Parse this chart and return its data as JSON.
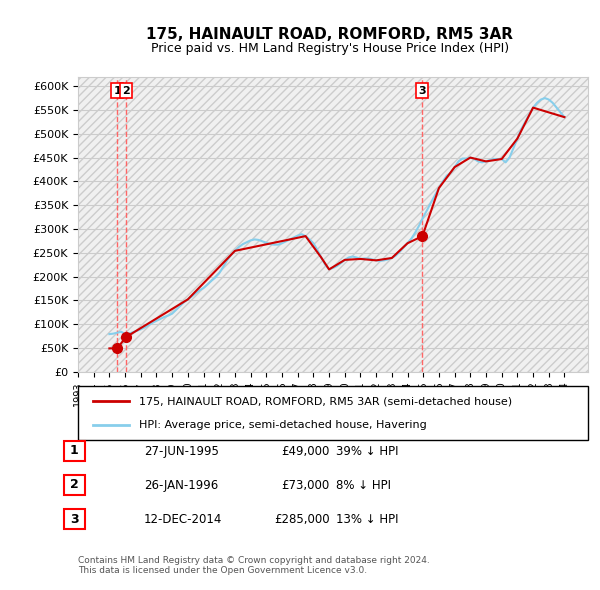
{
  "title": "175, HAINAULT ROAD, ROMFORD, RM5 3AR",
  "subtitle": "Price paid vs. HM Land Registry's House Price Index (HPI)",
  "ylabel_ticks": [
    "£0",
    "£50K",
    "£100K",
    "£150K",
    "£200K",
    "£250K",
    "£300K",
    "£350K",
    "£400K",
    "£450K",
    "£500K",
    "£550K",
    "£600K"
  ],
  "ylim": [
    0,
    620000
  ],
  "ytick_vals": [
    0,
    50000,
    100000,
    150000,
    200000,
    250000,
    300000,
    350000,
    400000,
    450000,
    500000,
    550000,
    600000
  ],
  "xlim_start": 1993.0,
  "xlim_end": 2025.5,
  "hpi_color": "#87CEEB",
  "price_color": "#CC0000",
  "vline_color": "#FF6666",
  "background_hatch_color": "#E8E8E8",
  "grid_color": "#CCCCCC",
  "sales": [
    {
      "year": 1995.49,
      "price": 49000,
      "label": "1"
    },
    {
      "year": 1996.07,
      "price": 73000,
      "label": "2"
    },
    {
      "year": 2014.95,
      "price": 285000,
      "label": "3"
    }
  ],
  "table_rows": [
    {
      "num": "1",
      "date": "27-JUN-1995",
      "price": "£49,000",
      "hpi": "39% ↓ HPI"
    },
    {
      "num": "2",
      "date": "26-JAN-1996",
      "price": "£73,000",
      "hpi": "8% ↓ HPI"
    },
    {
      "num": "3",
      "date": "12-DEC-2014",
      "price": "£285,000",
      "hpi": "13% ↓ HPI"
    }
  ],
  "legend_line1": "175, HAINAULT ROAD, ROMFORD, RM5 3AR (semi-detached house)",
  "legend_line2": "HPI: Average price, semi-detached house, Havering",
  "footer": "Contains HM Land Registry data © Crown copyright and database right 2024.\nThis data is licensed under the Open Government Licence v3.0.",
  "hpi_data_x": [
    1995.0,
    1995.25,
    1995.5,
    1995.75,
    1996.0,
    1996.25,
    1996.5,
    1996.75,
    1997.0,
    1997.25,
    1997.5,
    1997.75,
    1998.0,
    1998.25,
    1998.5,
    1998.75,
    1999.0,
    1999.25,
    1999.5,
    1999.75,
    2000.0,
    2000.25,
    2000.5,
    2000.75,
    2001.0,
    2001.25,
    2001.5,
    2001.75,
    2002.0,
    2002.25,
    2002.5,
    2002.75,
    2003.0,
    2003.25,
    2003.5,
    2003.75,
    2004.0,
    2004.25,
    2004.5,
    2004.75,
    2005.0,
    2005.25,
    2005.5,
    2005.75,
    2006.0,
    2006.25,
    2006.5,
    2006.75,
    2007.0,
    2007.25,
    2007.5,
    2007.75,
    2008.0,
    2008.25,
    2008.5,
    2008.75,
    2009.0,
    2009.25,
    2009.5,
    2009.75,
    2010.0,
    2010.25,
    2010.5,
    2010.75,
    2011.0,
    2011.25,
    2011.5,
    2011.75,
    2012.0,
    2012.25,
    2012.5,
    2012.75,
    2013.0,
    2013.25,
    2013.5,
    2013.75,
    2014.0,
    2014.25,
    2014.5,
    2014.75,
    2015.0,
    2015.25,
    2015.5,
    2015.75,
    2016.0,
    2016.25,
    2016.5,
    2016.75,
    2017.0,
    2017.25,
    2017.5,
    2017.75,
    2018.0,
    2018.25,
    2018.5,
    2018.75,
    2019.0,
    2019.25,
    2019.5,
    2019.75,
    2020.0,
    2020.25,
    2020.5,
    2020.75,
    2021.0,
    2021.25,
    2021.5,
    2021.75,
    2022.0,
    2022.25,
    2022.5,
    2022.75,
    2023.0,
    2023.25,
    2023.5,
    2023.75,
    2024.0
  ],
  "hpi_data_y": [
    79000,
    80000,
    82000,
    84000,
    79000,
    80000,
    83000,
    86000,
    89000,
    93000,
    98000,
    103000,
    107000,
    111000,
    115000,
    118000,
    122000,
    130000,
    138000,
    146000,
    152000,
    158000,
    165000,
    171000,
    176000,
    183000,
    191000,
    198000,
    207000,
    220000,
    234000,
    245000,
    254000,
    262000,
    268000,
    272000,
    276000,
    278000,
    277000,
    274000,
    271000,
    268000,
    267000,
    267000,
    270000,
    274000,
    278000,
    282000,
    286000,
    289000,
    285000,
    278000,
    270000,
    256000,
    240000,
    225000,
    215000,
    218000,
    222000,
    228000,
    235000,
    240000,
    242000,
    240000,
    237000,
    238000,
    238000,
    236000,
    234000,
    233000,
    234000,
    236000,
    239000,
    244000,
    252000,
    261000,
    270000,
    280000,
    293000,
    308000,
    325000,
    340000,
    356000,
    371000,
    386000,
    400000,
    412000,
    418000,
    430000,
    442000,
    448000,
    448000,
    450000,
    447000,
    442000,
    440000,
    442000,
    445000,
    447000,
    447000,
    447000,
    440000,
    450000,
    470000,
    490000,
    510000,
    525000,
    540000,
    555000,
    565000,
    572000,
    575000,
    572000,
    565000,
    555000,
    545000,
    535000
  ],
  "price_line_x": [
    1995.0,
    1995.49,
    1996.07,
    2000.0,
    2003.0,
    2006.5,
    2007.5,
    2008.5,
    2009.0,
    2010.0,
    2011.0,
    2012.0,
    2013.0,
    2014.0,
    2014.95,
    2016.0,
    2017.0,
    2018.0,
    2019.0,
    2020.0,
    2021.0,
    2022.0,
    2023.0,
    2024.0
  ],
  "price_line_y": [
    49000,
    49000,
    73000,
    152000,
    254000,
    278000,
    285000,
    240000,
    215000,
    235000,
    237000,
    234000,
    239000,
    270000,
    285000,
    386000,
    430000,
    450000,
    442000,
    447000,
    490000,
    555000,
    545000,
    535000
  ]
}
